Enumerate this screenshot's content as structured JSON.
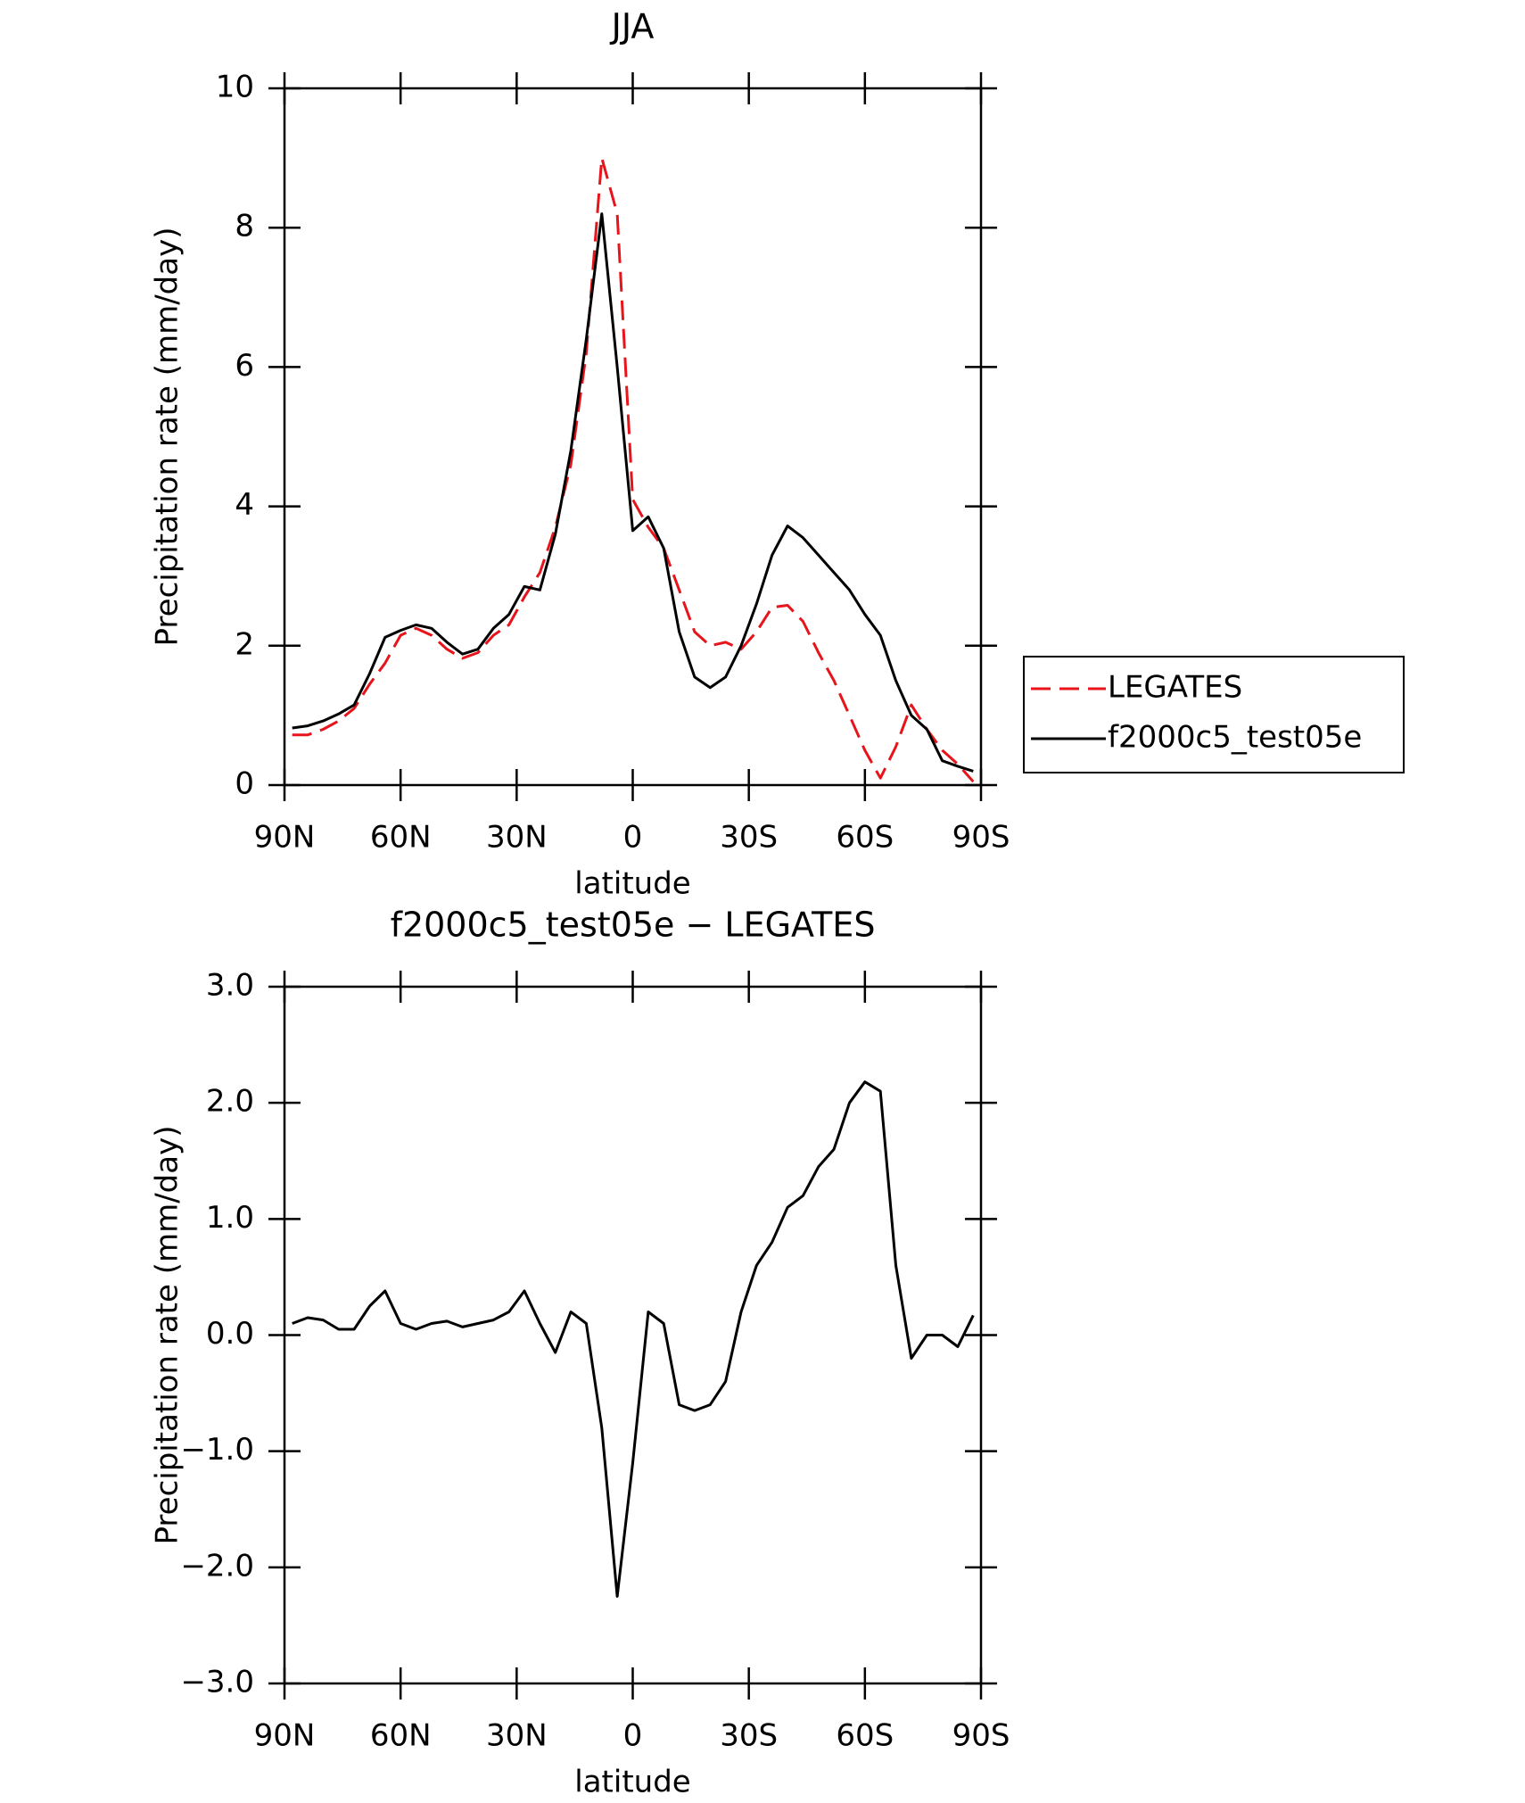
{
  "chart_data": [
    {
      "type": "line",
      "title": "JJA",
      "xlabel": "latitude",
      "ylabel": "Precipitation rate (mm/day)",
      "x": [
        88,
        84,
        80,
        76,
        72,
        68,
        64,
        60,
        56,
        52,
        48,
        44,
        40,
        36,
        32,
        28,
        24,
        20,
        16,
        12,
        8,
        4,
        0,
        -4,
        -8,
        -12,
        -16,
        -20,
        -24,
        -28,
        -32,
        -36,
        -40,
        -44,
        -48,
        -52,
        -56,
        -60,
        -64,
        -68,
        -72,
        -76,
        -80,
        -84,
        -88
      ],
      "xlim": [
        90,
        -90
      ],
      "xticks": [
        {
          "value": 90,
          "label": "90N"
        },
        {
          "value": 60,
          "label": "60N"
        },
        {
          "value": 30,
          "label": "30N"
        },
        0,
        {
          "value": -30,
          "label": "30S"
        },
        {
          "value": -60,
          "label": "60S"
        },
        {
          "value": -90,
          "label": "90S"
        }
      ],
      "ylim": [
        0,
        10
      ],
      "yticks": [
        0,
        2,
        4,
        6,
        8,
        10
      ],
      "legend": "right",
      "series": [
        {
          "name": "LEGATES",
          "color": "#e8141b",
          "style": "dashed",
          "values": [
            0.72,
            0.72,
            0.8,
            0.92,
            1.1,
            1.45,
            1.75,
            2.15,
            2.25,
            2.15,
            1.95,
            1.82,
            1.9,
            2.15,
            2.3,
            2.7,
            3.05,
            3.7,
            4.6,
            6.2,
            9.0,
            8.2,
            4.1,
            3.7,
            3.4,
            2.8,
            2.2,
            2.0,
            2.05,
            1.95,
            2.2,
            2.55,
            2.58,
            2.35,
            1.9,
            1.5,
            1.0,
            0.5,
            0.1,
            0.55,
            1.15,
            0.8,
            0.5,
            0.3,
            0.05
          ]
        },
        {
          "name": "f2000c5_test05e",
          "color": "#000000",
          "style": "solid",
          "values": [
            0.82,
            0.85,
            0.92,
            1.02,
            1.15,
            1.6,
            2.12,
            2.22,
            2.3,
            2.25,
            2.05,
            1.88,
            1.95,
            2.25,
            2.45,
            2.85,
            2.8,
            3.6,
            4.8,
            6.4,
            8.2,
            6.0,
            3.65,
            3.85,
            3.4,
            2.2,
            1.55,
            1.4,
            1.55,
            2.0,
            2.6,
            3.3,
            3.72,
            3.55,
            3.3,
            3.05,
            2.8,
            2.45,
            2.15,
            1.5,
            1.0,
            0.8,
            0.35,
            0.27,
            0.2
          ]
        }
      ]
    },
    {
      "type": "line",
      "title": "f2000c5_test05e − LEGATES",
      "xlabel": "latitude",
      "ylabel": "Precipitation rate (mm/day)",
      "x": [
        88,
        84,
        80,
        76,
        72,
        68,
        64,
        60,
        56,
        52,
        48,
        44,
        40,
        36,
        32,
        28,
        24,
        20,
        16,
        12,
        8,
        4,
        0,
        -4,
        -8,
        -12,
        -16,
        -20,
        -24,
        -28,
        -32,
        -36,
        -40,
        -44,
        -48,
        -52,
        -56,
        -60,
        -64,
        -68,
        -72,
        -76,
        -80,
        -84,
        -88
      ],
      "xlim": [
        90,
        -90
      ],
      "xticks": [
        {
          "value": 90,
          "label": "90N"
        },
        {
          "value": 60,
          "label": "60N"
        },
        {
          "value": 30,
          "label": "30N"
        },
        0,
        {
          "value": -30,
          "label": "30S"
        },
        {
          "value": -60,
          "label": "60S"
        },
        {
          "value": -90,
          "label": "90S"
        }
      ],
      "ylim": [
        -3,
        3
      ],
      "yticks": [
        {
          "value": -3,
          "label": "−3.0"
        },
        {
          "value": -2,
          "label": "−2.0"
        },
        {
          "value": -1,
          "label": "−1.0"
        },
        {
          "value": 0,
          "label": "0.0"
        },
        {
          "value": 1,
          "label": "1.0"
        },
        {
          "value": 2,
          "label": "2.0"
        },
        {
          "value": 3,
          "label": "3.0"
        }
      ],
      "series": [
        {
          "color": "#000000",
          "style": "solid",
          "values": [
            0.1,
            0.15,
            0.13,
            0.05,
            0.05,
            0.25,
            0.38,
            0.1,
            0.05,
            0.1,
            0.12,
            0.07,
            0.1,
            0.13,
            0.2,
            0.38,
            0.1,
            -0.15,
            0.2,
            0.1,
            -0.8,
            -2.25,
            -1.1,
            0.2,
            0.1,
            -0.6,
            -0.65,
            -0.6,
            -0.4,
            0.2,
            0.6,
            0.8,
            1.1,
            1.2,
            1.45,
            1.6,
            2.0,
            2.18,
            2.1,
            0.6,
            -0.2,
            0.0,
            0.0,
            -0.1,
            0.17
          ]
        }
      ]
    }
  ]
}
